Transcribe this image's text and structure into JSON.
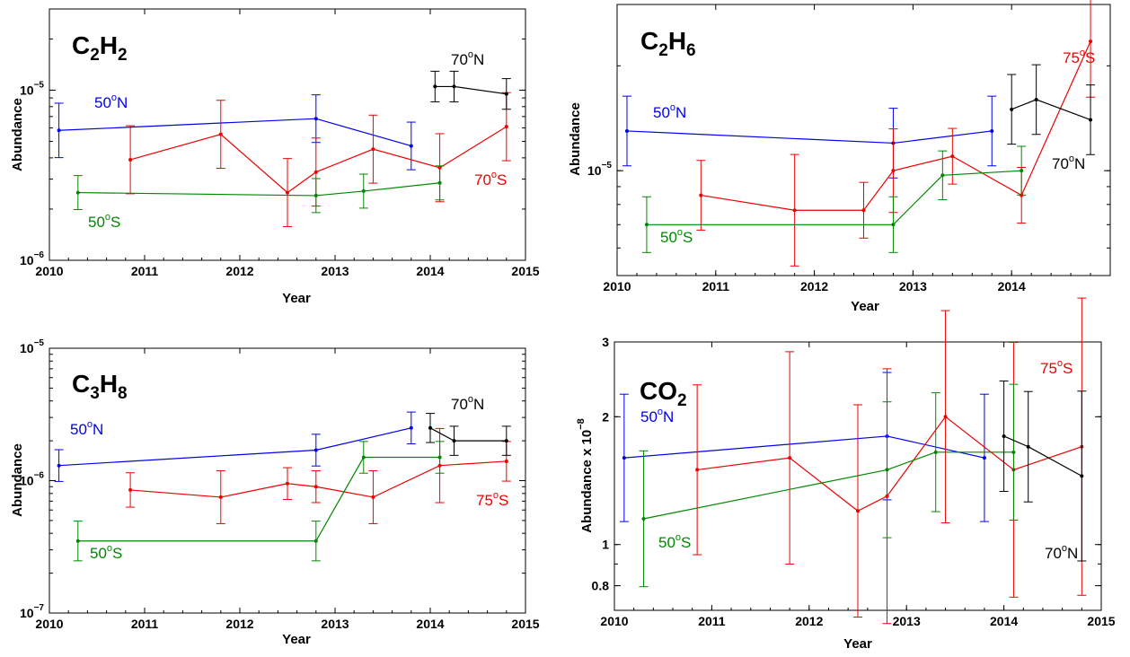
{
  "chart_data": [
    {
      "type": "line",
      "molecule": {
        "base1": "C",
        "sub1": "2",
        "base2": "H",
        "sub2": "2"
      },
      "ylabel": "Abundance",
      "xlabel": "Year",
      "xlim": [
        2010,
        2015
      ],
      "ylim": [
        1e-06,
        3e-05
      ],
      "yscale": "log",
      "x_ticks": [
        "2010",
        "2011",
        "2012",
        "2013",
        "2014",
        "2015"
      ],
      "y_ticks": [
        {
          "value": 1e-06,
          "base": "10",
          "exp": "−6"
        },
        {
          "value": 1e-05,
          "base": "10",
          "exp": "−5"
        }
      ],
      "series": [
        {
          "label": {
            "value": "50",
            "unit": "N",
            "sup": "o"
          },
          "color": "#0000ee",
          "x": [
            2010.1,
            2012.8,
            2013.8
          ],
          "y": [
            5.8e-06,
            6.8e-06,
            4.7e-06
          ],
          "err": [
            0.16,
            0.14,
            0.14
          ]
        },
        {
          "label": {
            "value": "70",
            "unit": "S",
            "sup": "o"
          },
          "color": "#ee0000",
          "x": [
            2010.85,
            2011.8,
            2012.5,
            2012.8,
            2013.4,
            2014.1,
            2014.8
          ],
          "y": [
            3.9e-06,
            5.5e-06,
            2.5e-06,
            3.3e-06,
            4.5e-06,
            3.5e-06,
            6.1e-06
          ],
          "err": [
            0.2,
            0.2,
            0.2,
            0.2,
            0.2,
            0.2,
            0.2
          ]
        },
        {
          "label": {
            "value": "50",
            "unit": "S",
            "sup": "o"
          },
          "color": "#008800",
          "x": [
            2010.3,
            2012.8,
            2013.3,
            2014.1
          ],
          "y": [
            2.5e-06,
            2.4e-06,
            2.55e-06,
            2.85e-06
          ],
          "err": [
            0.1,
            0.1,
            0.1,
            0.1
          ]
        },
        {
          "label": {
            "value": "70",
            "unit": "N",
            "sup": "o"
          },
          "color": "#000000",
          "x": [
            2014.05,
            2014.25,
            2014.8
          ],
          "y": [
            1.05e-05,
            1.05e-05,
            9.5e-06
          ],
          "err": [
            0.09,
            0.09,
            0.09
          ]
        }
      ]
    },
    {
      "type": "line",
      "molecule": {
        "base1": "C",
        "sub1": "2",
        "base2": "H",
        "sub2": "6"
      },
      "ylabel": "Abundance",
      "xlabel": "Year",
      "xlim": [
        2010,
        2015
      ],
      "ylim": [
        5e-06,
        3e-05
      ],
      "yscale": "log",
      "x_ticks": [
        "2010",
        "2011",
        "2012",
        "2013",
        "2014"
      ],
      "y_ticks": [
        {
          "value": 1e-05,
          "base": "10",
          "exp": "−5"
        }
      ],
      "series": [
        {
          "label": {
            "value": "50",
            "unit": "N",
            "sup": "o"
          },
          "color": "#0000ee",
          "x": [
            2010.1,
            2012.8,
            2013.8
          ],
          "y": [
            1.3e-05,
            1.2e-05,
            1.3e-05
          ],
          "err": [
            0.1,
            0.1,
            0.1
          ]
        },
        {
          "label": {
            "value": "75",
            "unit": "S",
            "sup": "o"
          },
          "color": "#ee0000",
          "x": [
            2010.85,
            2011.8,
            2012.5,
            2012.8,
            2013.4,
            2014.1,
            2014.8
          ],
          "y": [
            8.5e-06,
            7.7e-06,
            7.7e-06,
            1e-05,
            1.1e-05,
            8.5e-06,
            2.35e-05
          ],
          "err": [
            0.1,
            0.16,
            0.08,
            0.12,
            0.08,
            0.08,
            0.16
          ]
        },
        {
          "label": {
            "value": "50",
            "unit": "S",
            "sup": "o"
          },
          "color": "#008800",
          "x": [
            2010.3,
            2012.8,
            2013.3,
            2014.1
          ],
          "y": [
            7e-06,
            7e-06,
            9.7e-06,
            1e-05
          ],
          "err": [
            0.08,
            0.08,
            0.07,
            0.07
          ]
        },
        {
          "label": {
            "value": "70",
            "unit": "N",
            "sup": "o"
          },
          "color": "#000000",
          "x": [
            2014.0,
            2014.25,
            2014.8
          ],
          "y": [
            1.5e-05,
            1.6e-05,
            1.4e-05
          ],
          "err": [
            0.1,
            0.1,
            0.1
          ]
        }
      ]
    },
    {
      "type": "line",
      "molecule": {
        "base1": "C",
        "sub1": "3",
        "base2": "H",
        "sub2": "8"
      },
      "ylabel": "Abundance",
      "xlabel": "Year",
      "xlim": [
        2010,
        2015
      ],
      "ylim": [
        1e-07,
        1e-05
      ],
      "yscale": "log",
      "x_ticks": [
        "2010",
        "2011",
        "2012",
        "2013",
        "2014",
        "2015"
      ],
      "y_ticks": [
        {
          "value": 1e-07,
          "base": "10",
          "exp": "−7"
        },
        {
          "value": 1e-06,
          "base": "10",
          "exp": "−6"
        },
        {
          "value": 1e-05,
          "base": "10",
          "exp": "−5"
        }
      ],
      "series": [
        {
          "label": {
            "value": "50",
            "unit": "N",
            "sup": "o"
          },
          "color": "#0000ee",
          "x": [
            2010.1,
            2012.8,
            2013.8
          ],
          "y": [
            1.3e-06,
            1.7e-06,
            2.5e-06
          ],
          "err": [
            0.12,
            0.12,
            0.12
          ]
        },
        {
          "label": {
            "value": "75",
            "unit": "S",
            "sup": "o"
          },
          "color": "#ee0000",
          "x": [
            2010.85,
            2011.8,
            2012.5,
            2012.8,
            2013.4,
            2014.1,
            2014.8
          ],
          "y": [
            8.5e-07,
            7.5e-07,
            9.5e-07,
            9e-07,
            7.5e-07,
            1.3e-06,
            1.4e-06
          ],
          "err": [
            0.13,
            0.2,
            0.12,
            0.12,
            0.2,
            0.28,
            0.15
          ]
        },
        {
          "label": {
            "value": "50",
            "unit": "S",
            "sup": "o"
          },
          "color": "#008800",
          "x": [
            2010.3,
            2012.8,
            2013.3,
            2014.1
          ],
          "y": [
            3.5e-07,
            3.5e-07,
            1.5e-06,
            1.5e-06
          ],
          "err": [
            0.15,
            0.15,
            0.12,
            0.12
          ]
        },
        {
          "label": {
            "value": "70",
            "unit": "N",
            "sup": "o"
          },
          "color": "#000000",
          "x": [
            2014.0,
            2014.25,
            2014.8
          ],
          "y": [
            2.5e-06,
            2e-06,
            2e-06
          ],
          "err": [
            0.11,
            0.11,
            0.11
          ]
        }
      ]
    },
    {
      "type": "line",
      "molecule": {
        "base1": "CO",
        "sub1": "2",
        "base2": "",
        "sub2": ""
      },
      "ylabel": "Abundance x 10",
      "ylabel_exp": "−8",
      "xlabel": "Year",
      "xlim": [
        2010,
        2015
      ],
      "ylim": [
        0.7,
        3.0
      ],
      "yscale": "log",
      "x_ticks": [
        "2010",
        "2011",
        "2012",
        "2013",
        "2014",
        "2015"
      ],
      "y_ticks": [
        {
          "value": 0.8,
          "base": "0.8",
          "exp": ""
        },
        {
          "value": 1,
          "base": "1",
          "exp": ""
        },
        {
          "value": 2,
          "base": "2",
          "exp": ""
        },
        {
          "value": 3,
          "base": "3",
          "exp": ""
        }
      ],
      "series": [
        {
          "label": {
            "value": "50",
            "unit": "N",
            "sup": "o"
          },
          "color": "#0000ee",
          "x": [
            2010.1,
            2012.8,
            2013.8
          ],
          "y": [
            1.6,
            1.8,
            1.6
          ],
          "err": [
            0.15,
            0.15,
            0.15
          ]
        },
        {
          "label": {
            "value": "75",
            "unit": "S",
            "sup": "o"
          },
          "color": "#ee0000",
          "x": [
            2010.85,
            2011.8,
            2012.5,
            2012.8,
            2013.4,
            2014.1,
            2014.8
          ],
          "y": [
            1.5,
            1.6,
            1.2,
            1.3,
            2.0,
            1.5,
            1.7
          ],
          "err": [
            0.2,
            0.25,
            0.25,
            0.3,
            0.25,
            0.3,
            0.35
          ]
        },
        {
          "label": {
            "value": "50",
            "unit": "S",
            "sup": "o"
          },
          "color": "#008800",
          "x": [
            2010.3,
            2012.8,
            2013.3,
            2014.1
          ],
          "y": [
            1.15,
            1.5,
            1.65,
            1.65
          ],
          "err": [
            0.16,
            0.16,
            0.14,
            0.16
          ]
        },
        {
          "label": {
            "value": "70",
            "unit": "N",
            "sup": "o"
          },
          "color": "#000000",
          "x": [
            2014.0,
            2014.25,
            2014.8
          ],
          "y": [
            1.8,
            1.7,
            1.45
          ],
          "err": [
            0.13,
            0.13,
            0.2
          ]
        }
      ]
    }
  ]
}
